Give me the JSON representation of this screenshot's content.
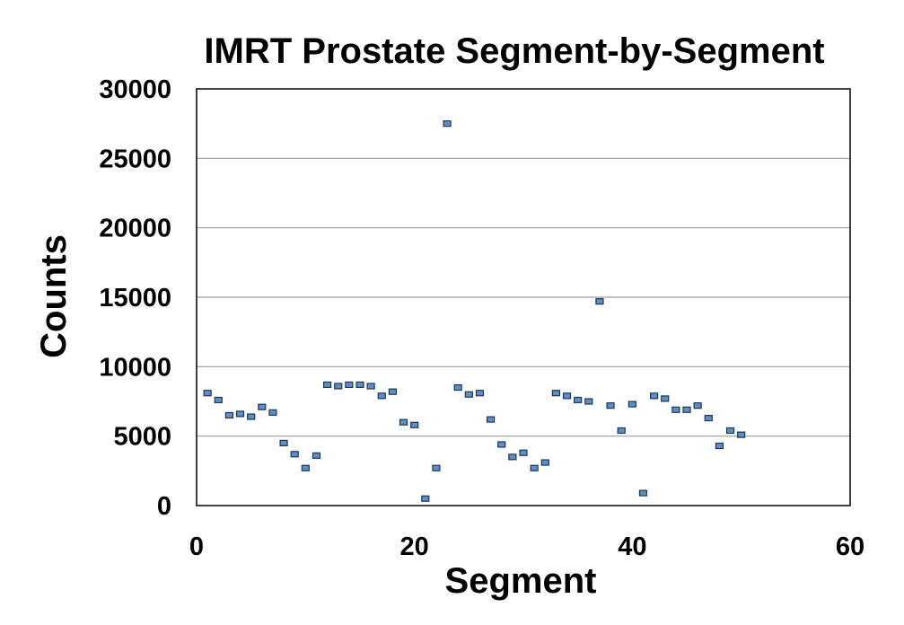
{
  "chart_data": {
    "type": "scatter",
    "title": "IMRT Prostate Segment-by-Segment",
    "xlabel": "Segment",
    "ylabel": "Counts",
    "xlim": [
      0,
      60
    ],
    "ylim": [
      0,
      30000
    ],
    "xticks": [
      0,
      20,
      40,
      60
    ],
    "yticks": [
      0,
      5000,
      10000,
      15000,
      20000,
      25000,
      30000
    ],
    "grid": "horizontal",
    "legend": "none",
    "marker_color": "#5b8fc9",
    "points": [
      {
        "x": 1,
        "y": 8100
      },
      {
        "x": 2,
        "y": 7600
      },
      {
        "x": 3,
        "y": 6500
      },
      {
        "x": 4,
        "y": 6600
      },
      {
        "x": 5,
        "y": 6400
      },
      {
        "x": 6,
        "y": 7100
      },
      {
        "x": 7,
        "y": 6700
      },
      {
        "x": 8,
        "y": 4500
      },
      {
        "x": 9,
        "y": 3700
      },
      {
        "x": 10,
        "y": 2700
      },
      {
        "x": 11,
        "y": 3600
      },
      {
        "x": 12,
        "y": 8700
      },
      {
        "x": 13,
        "y": 8600
      },
      {
        "x": 14,
        "y": 8700
      },
      {
        "x": 15,
        "y": 8700
      },
      {
        "x": 16,
        "y": 8600
      },
      {
        "x": 17,
        "y": 7900
      },
      {
        "x": 18,
        "y": 8200
      },
      {
        "x": 19,
        "y": 6000
      },
      {
        "x": 20,
        "y": 5800
      },
      {
        "x": 21,
        "y": 500
      },
      {
        "x": 22,
        "y": 2700
      },
      {
        "x": 23,
        "y": 27500
      },
      {
        "x": 24,
        "y": 8500
      },
      {
        "x": 25,
        "y": 8000
      },
      {
        "x": 26,
        "y": 8100
      },
      {
        "x": 27,
        "y": 6200
      },
      {
        "x": 28,
        "y": 4400
      },
      {
        "x": 29,
        "y": 3500
      },
      {
        "x": 30,
        "y": 3800
      },
      {
        "x": 31,
        "y": 2700
      },
      {
        "x": 32,
        "y": 3100
      },
      {
        "x": 33,
        "y": 8100
      },
      {
        "x": 34,
        "y": 7900
      },
      {
        "x": 35,
        "y": 7600
      },
      {
        "x": 36,
        "y": 7500
      },
      {
        "x": 37,
        "y": 14700
      },
      {
        "x": 38,
        "y": 7200
      },
      {
        "x": 39,
        "y": 5400
      },
      {
        "x": 40,
        "y": 7300
      },
      {
        "x": 41,
        "y": 900
      },
      {
        "x": 42,
        "y": 7900
      },
      {
        "x": 43,
        "y": 7700
      },
      {
        "x": 44,
        "y": 6900
      },
      {
        "x": 45,
        "y": 6900
      },
      {
        "x": 46,
        "y": 7200
      },
      {
        "x": 47,
        "y": 6300
      },
      {
        "x": 48,
        "y": 4300
      },
      {
        "x": 49,
        "y": 5400
      },
      {
        "x": 50,
        "y": 5100
      }
    ]
  }
}
